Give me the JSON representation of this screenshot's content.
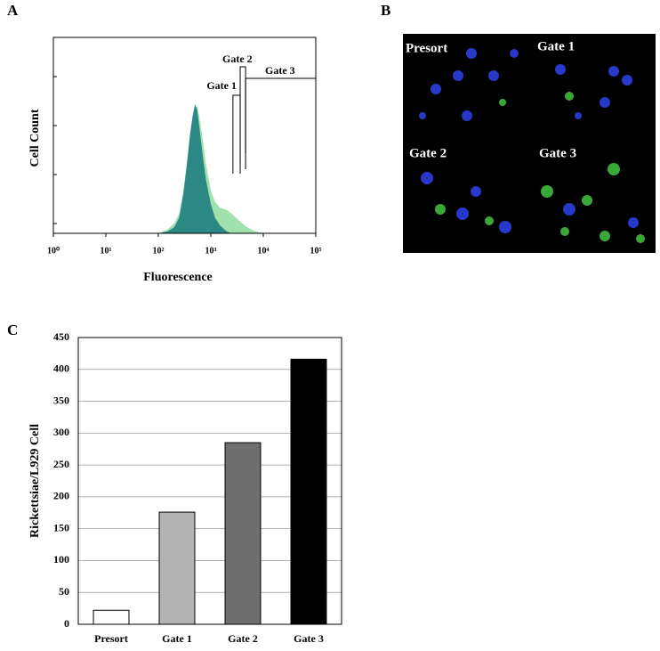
{
  "chart_data": [
    {
      "type": "area",
      "panel_label": "A",
      "x_label": "Fluorescence",
      "y_label": "Cell Count",
      "log_x": true,
      "xlim": [
        1,
        100000
      ],
      "xticks": [
        {
          "value": 1,
          "label": "10⁰"
        },
        {
          "value": 10,
          "label": "10¹"
        },
        {
          "value": 100,
          "label": "10²"
        },
        {
          "value": 1000,
          "label": "10³"
        },
        {
          "value": 10000,
          "label": "10⁴"
        },
        {
          "value": 100000,
          "label": "10⁵"
        }
      ],
      "ylim": [
        0,
        100
      ],
      "x": [
        100,
        150,
        200,
        250,
        300,
        350,
        400,
        450,
        500,
        550,
        600,
        700,
        800,
        1000,
        1200,
        1500,
        2000,
        2500,
        3000,
        4000,
        5000,
        7000,
        10000
      ],
      "series": [
        {
          "color": "#8fdc9f",
          "values": [
            0,
            2,
            5,
            10,
            22,
            36,
            50,
            58,
            64,
            65,
            60,
            48,
            36,
            22,
            16,
            13,
            12,
            10,
            8,
            5,
            3,
            1,
            0
          ]
        },
        {
          "color": "#16787e",
          "values": [
            0,
            1,
            3,
            8,
            20,
            35,
            50,
            60,
            66,
            63,
            55,
            40,
            28,
            15,
            8,
            4,
            1,
            0,
            0,
            0,
            0,
            0,
            0
          ]
        }
      ],
      "gates": [
        {
          "label": "Gate 1",
          "range": [
            2640,
            3630
          ]
        },
        {
          "label": "Gate 2",
          "range": [
            3630,
            4600
          ]
        },
        {
          "label": "Gate 3",
          "range": [
            4600,
            100000
          ]
        }
      ]
    },
    {
      "type": "image",
      "panel_label": "B",
      "labels": [
        "Presort",
        "Gate 1",
        "Gate 2",
        "Gate 3"
      ]
    },
    {
      "type": "bar",
      "panel_label": "C",
      "y_label": "Rickettsiae/L929 Cell",
      "categories": [
        "Presort",
        "Gate 1",
        "Gate 2",
        "Gate 3"
      ],
      "values": [
        22,
        176,
        285,
        416
      ],
      "colors": [
        "#ffffff",
        "#b3b3b3",
        "#6e6e6e",
        "#000000"
      ],
      "ylim": [
        0,
        450
      ],
      "yticks": [
        0,
        50,
        100,
        150,
        200,
        250,
        300,
        350,
        400,
        450
      ],
      "grid": true
    }
  ]
}
